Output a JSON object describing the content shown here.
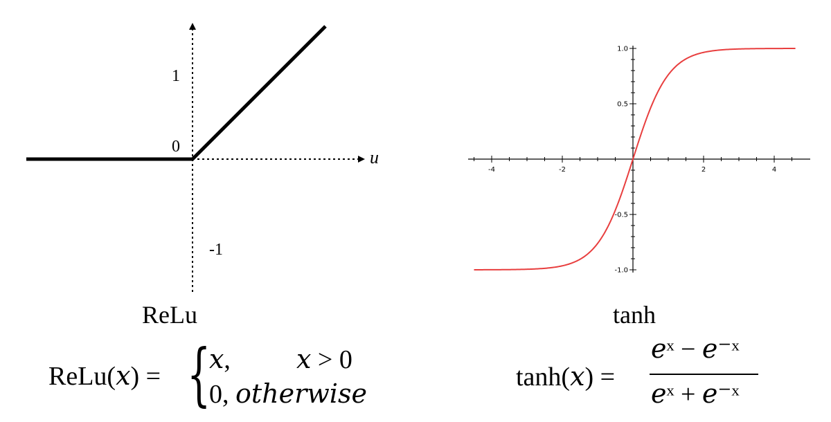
{
  "chart_data": [
    {
      "type": "line",
      "function": "ReLu",
      "caption": "ReLu",
      "xlabel": "u",
      "ytick_labels": [
        "1",
        "0",
        "-1"
      ],
      "xlim": [
        -2,
        2
      ],
      "ylim": [
        -1.6,
        1.6
      ],
      "series": [
        {
          "x": [
            -2.0,
            0,
            1.6
          ],
          "y": [
            0,
            0,
            1.6
          ],
          "color": "#000000"
        }
      ],
      "formula": {
        "lhs": "ReLu(𝑥) =",
        "case1_value": "𝑥,",
        "case1_condition": "𝑥 > 0",
        "case2": "0, 𝑜𝑡ℎ𝑒𝑟𝑤𝑖𝑠𝑒"
      },
      "axis_style": "dotted arrows"
    },
    {
      "type": "line",
      "function": "tanh",
      "caption": "tanh",
      "xlim": [
        -4.5,
        4.6
      ],
      "ylim": [
        -1.0,
        1.0
      ],
      "xticks": [
        "-4",
        "-2",
        "2",
        "4"
      ],
      "yticks": [
        "1.0",
        "0.5",
        "-0.5",
        "-1.0"
      ],
      "series": [
        {
          "x_range": [
            -4.5,
            4.6
          ],
          "expression": "tanh(x)",
          "color": "#e83e3e"
        }
      ],
      "formula": {
        "lhs": "tanh(𝑥) =",
        "numerator": "𝑒ˣ − 𝑒⁻ˣ",
        "denominator": "𝑒ˣ + 𝑒⁻ˣ"
      }
    }
  ]
}
